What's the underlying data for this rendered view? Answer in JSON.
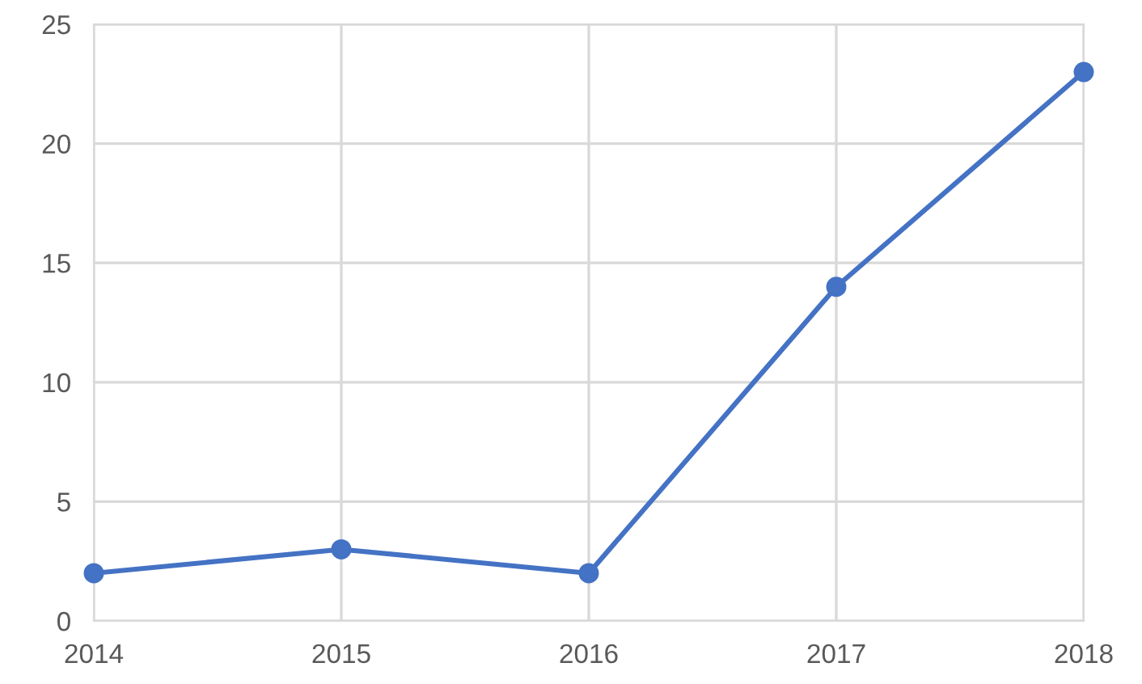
{
  "chart_data": {
    "type": "line",
    "x": [
      2014,
      2015,
      2016,
      2017,
      2018
    ],
    "series": [
      {
        "color": "#4472c4",
        "values": [
          2,
          3,
          2,
          14,
          23
        ]
      }
    ],
    "xlim": [
      2014,
      2018
    ],
    "xticks": [
      2014,
      2015,
      2016,
      2017,
      2018
    ],
    "ylim": [
      0,
      25
    ],
    "yticks": [
      0,
      5,
      10,
      15,
      20,
      25
    ],
    "grid": true,
    "marker": "circle",
    "line_style": "solid"
  }
}
